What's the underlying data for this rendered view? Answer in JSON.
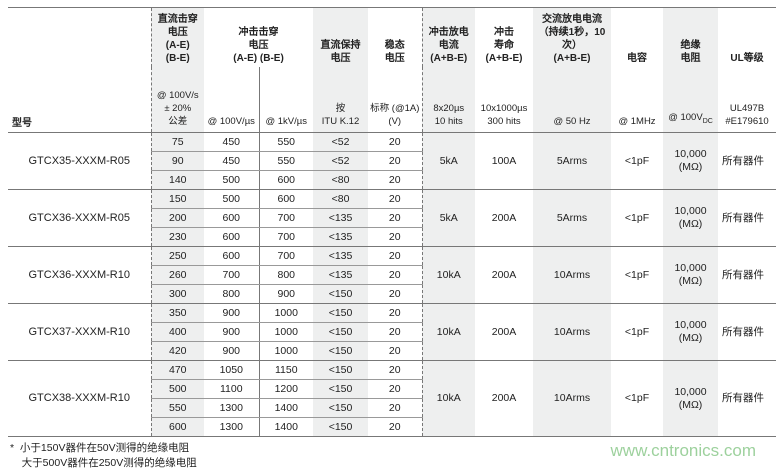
{
  "header": {
    "model": "型号",
    "cols": [
      {
        "title": [
          "直流击穿",
          "电压",
          "(A-E)",
          "(B-E)"
        ],
        "sub": [
          "@ 100V/s",
          "± 20%",
          "公差"
        ]
      },
      {
        "title": [
          "冲击击穿",
          "电压",
          "(A-E) (B-E)"
        ],
        "sub": [
          "@ 100V/µs"
        ]
      },
      {
        "title": [],
        "sub": [
          "@ 1kV/µs"
        ]
      },
      {
        "title": [
          "直流保持",
          "电压"
        ],
        "sub": [
          "按",
          "ITU K.12"
        ]
      },
      {
        "title": [
          "稳态",
          "电压"
        ],
        "sub": [
          "标称 (@1A)",
          "(V)"
        ]
      },
      {
        "title": [
          "冲击放电",
          "电流",
          "(A+B-E)"
        ],
        "sub": [
          "8x20µs",
          "10 hits"
        ]
      },
      {
        "title": [
          "冲击",
          "寿命",
          "(A+B-E)"
        ],
        "sub": [
          "10x1000µs",
          "300 hits"
        ]
      },
      {
        "title": [
          "交流放电电流",
          "（持续1秒，10次）",
          "(A+B-E)"
        ],
        "sub": [
          "@ 50 Hz"
        ]
      },
      {
        "title": [
          "电容"
        ],
        "sub": [
          "@ 1MHz"
        ]
      },
      {
        "title": [
          "绝缘",
          "电阻"
        ],
        "sub": [
          "@ 100V",
          "DC"
        ]
      },
      {
        "title": [
          "UL等级"
        ],
        "sub": [
          "UL497B",
          "#E179610"
        ]
      }
    ]
  },
  "groups": [
    {
      "model": "GTCX35-XXXM-R05",
      "rows": [
        [
          "75",
          "450",
          "550",
          "<52",
          "20"
        ],
        [
          "90",
          "450",
          "550",
          "<52",
          "20"
        ],
        [
          "140",
          "500",
          "600",
          "<80",
          "20"
        ]
      ],
      "impulse": "5kA",
      "life": "100A",
      "ac": "5Arms",
      "cap": "<1pF",
      "ir": [
        "10,000",
        "(MΩ)"
      ],
      "ul": "所有器件"
    },
    {
      "model": "GTCX36-XXXM-R05",
      "rows": [
        [
          "150",
          "500",
          "600",
          "<80",
          "20"
        ],
        [
          "200",
          "600",
          "700",
          "<135",
          "20"
        ],
        [
          "230",
          "600",
          "700",
          "<135",
          "20"
        ]
      ],
      "impulse": "5kA",
      "life": "200A",
      "ac": "5Arms",
      "cap": "<1pF",
      "ir": [
        "10,000",
        "(MΩ)"
      ],
      "ul": "所有器件"
    },
    {
      "model": "GTCX36-XXXM-R10",
      "rows": [
        [
          "250",
          "600",
          "700",
          "<135",
          "20"
        ],
        [
          "260",
          "700",
          "800",
          "<135",
          "20"
        ],
        [
          "300",
          "800",
          "900",
          "<150",
          "20"
        ]
      ],
      "impulse": "10kA",
      "life": "200A",
      "ac": "10Arms",
      "cap": "<1pF",
      "ir": [
        "10,000",
        "(MΩ)"
      ],
      "ul": "所有器件"
    },
    {
      "model": "GTCX37-XXXM-R10",
      "rows": [
        [
          "350",
          "900",
          "1000",
          "<150",
          "20"
        ],
        [
          "400",
          "900",
          "1000",
          "<150",
          "20"
        ],
        [
          "420",
          "900",
          "1000",
          "<150",
          "20"
        ]
      ],
      "impulse": "10kA",
      "life": "200A",
      "ac": "10Arms",
      "cap": "<1pF",
      "ir": [
        "10,000",
        "(MΩ)"
      ],
      "ul": "所有器件"
    },
    {
      "model": "GTCX38-XXXM-R10",
      "rows": [
        [
          "470",
          "1050",
          "1150",
          "<150",
          "20"
        ],
        [
          "500",
          "1100",
          "1200",
          "<150",
          "20"
        ],
        [
          "550",
          "1300",
          "1400",
          "<150",
          "20"
        ],
        [
          "600",
          "1300",
          "1400",
          "<150",
          "20"
        ]
      ],
      "impulse": "10kA",
      "life": "200A",
      "ac": "10Arms",
      "cap": "<1pF",
      "ir": [
        "10,000",
        "(MΩ)"
      ],
      "ul": "所有器件"
    }
  ],
  "notes": [
    "*  小于150V器件在50V测得的绝缘电阻",
    "    大于500V器件在250V测得的绝缘电阻"
  ],
  "watermark": "www.cntronics.com",
  "colors": {
    "shade": "#eeefef",
    "rule": "#777777",
    "watermark": "#8cc98c"
  }
}
